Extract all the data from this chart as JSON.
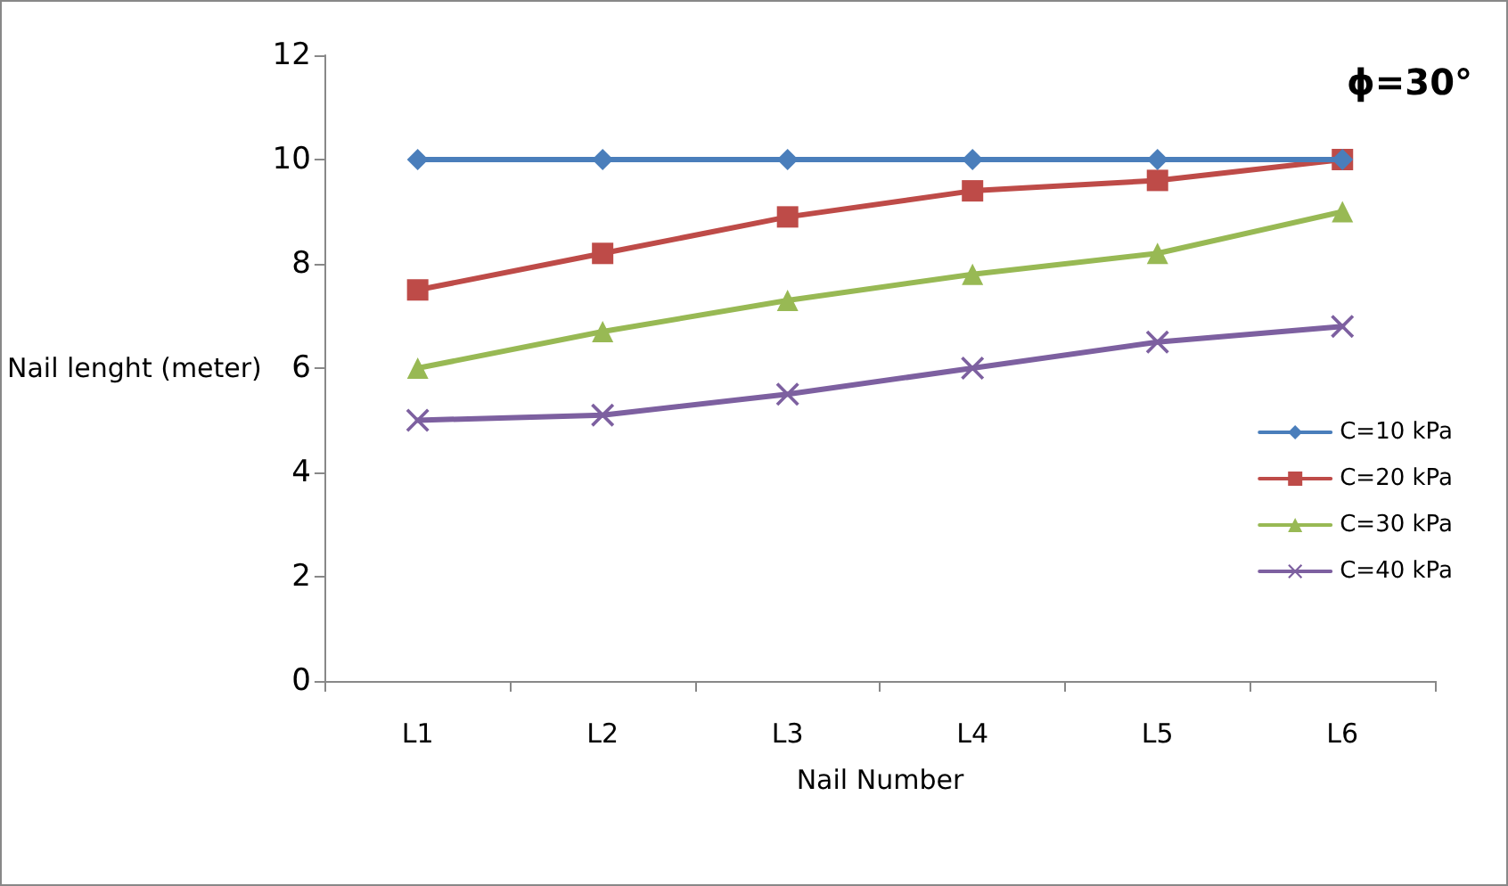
{
  "chart_data": {
    "type": "line",
    "title": "ϕ=30°",
    "xlabel": "Nail Number",
    "ylabel": "Nail lenght (meter)",
    "categories": [
      "L1",
      "L2",
      "L3",
      "L4",
      "L5",
      "L6"
    ],
    "series": [
      {
        "name": "C=10 kPa",
        "color": "#4a7ebb",
        "marker": "diamond",
        "values": [
          10,
          10,
          10,
          10,
          10,
          10
        ]
      },
      {
        "name": "C=20 kPa",
        "color": "#be4b48",
        "marker": "square",
        "values": [
          7.5,
          8.2,
          8.9,
          9.4,
          9.6,
          10
        ]
      },
      {
        "name": "C=30 kPa",
        "color": "#98b954",
        "marker": "triangle",
        "values": [
          6.0,
          6.7,
          7.3,
          7.8,
          8.2,
          9.0
        ]
      },
      {
        "name": "C=40 kPa",
        "color": "#7d60a0",
        "marker": "cross",
        "values": [
          5.0,
          5.1,
          5.5,
          6.0,
          6.5,
          6.8
        ]
      }
    ],
    "ylim": [
      0,
      12
    ],
    "yticks": [
      0,
      2,
      4,
      6,
      8,
      10,
      12
    ],
    "grid": false,
    "legend": "right",
    "line_style": "solid"
  }
}
